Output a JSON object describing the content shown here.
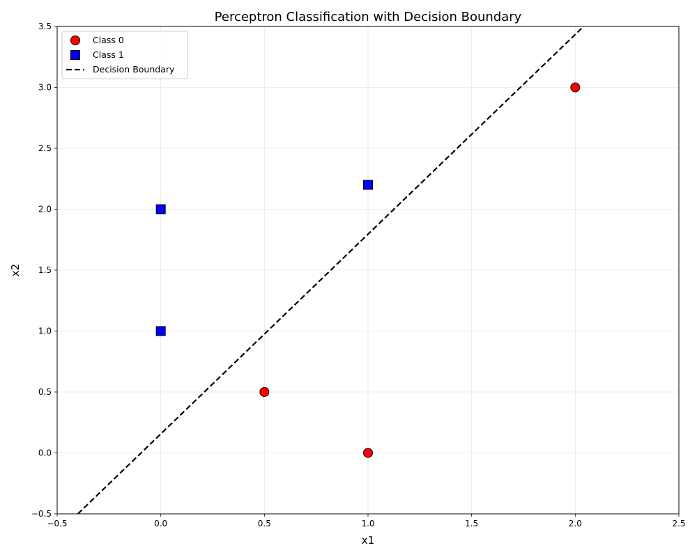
{
  "chart_data": {
    "type": "scatter",
    "title": "Perceptron Classification with Decision Boundary",
    "xlabel": "x1",
    "ylabel": "x2",
    "xlim": [
      -0.5,
      2.5
    ],
    "ylim": [
      -0.5,
      3.5
    ],
    "xticks": [
      -0.5,
      0.0,
      0.5,
      1.0,
      1.5,
      2.0,
      2.5
    ],
    "xtick_labels": [
      "−0.5",
      "0.0",
      "0.5",
      "1.0",
      "1.5",
      "2.0",
      "2.5"
    ],
    "yticks": [
      -0.5,
      0.0,
      0.5,
      1.0,
      1.5,
      2.0,
      2.5,
      3.0,
      3.5
    ],
    "ytick_labels": [
      "−0.5",
      "0.0",
      "0.5",
      "1.0",
      "1.5",
      "2.0",
      "2.5",
      "3.0",
      "3.5"
    ],
    "grid": true,
    "legend_position": "top-left",
    "series": [
      {
        "name": "Class 0",
        "marker": "circle",
        "color": "#ff0000",
        "points": [
          {
            "x": 2.0,
            "y": 3.0
          },
          {
            "x": 0.5,
            "y": 0.5
          },
          {
            "x": 1.0,
            "y": 0.0
          }
        ]
      },
      {
        "name": "Class 1",
        "marker": "square",
        "color": "#0000ff",
        "points": [
          {
            "x": 1.0,
            "y": 2.2
          },
          {
            "x": 0.0,
            "y": 2.0
          },
          {
            "x": 0.0,
            "y": 1.0
          }
        ]
      }
    ],
    "lines": [
      {
        "name": "Decision Boundary",
        "style": "dashed",
        "color": "#000000",
        "points": [
          {
            "x": -0.4,
            "y": -0.5
          },
          {
            "x": 2.04,
            "y": 3.5
          }
        ]
      }
    ]
  }
}
